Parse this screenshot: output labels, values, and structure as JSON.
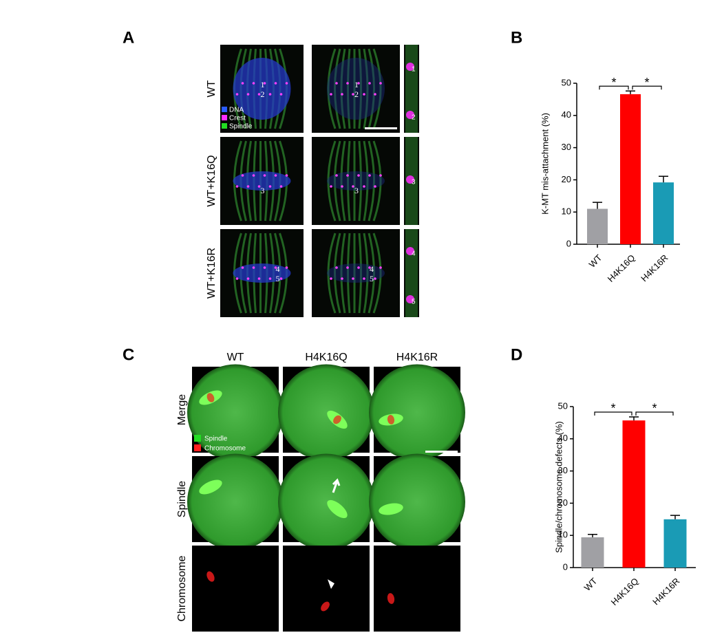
{
  "panels": {
    "A": {
      "letter": "A",
      "rows": [
        {
          "label": "WT",
          "markers": [
            "1",
            "2"
          ]
        },
        {
          "label": "WT+K16Q",
          "markers": [
            "3"
          ]
        },
        {
          "label": "WT+K16R",
          "markers": [
            "4",
            "5"
          ]
        }
      ],
      "legend": [
        {
          "name": "DNA",
          "color": "#2a5cff"
        },
        {
          "name": "Crest",
          "color": "#ff2cff"
        },
        {
          "name": "Spindle",
          "color": "#22dd22"
        }
      ]
    },
    "C": {
      "letter": "C",
      "columns": [
        "WT",
        "H4K16Q",
        "H4K16R"
      ],
      "rows": [
        "Merge",
        "Spindle",
        "Chromosome"
      ],
      "legend": [
        {
          "name": "Spindle",
          "color": "#22dd22"
        },
        {
          "name": "Chromosome",
          "color": "#ff2020"
        }
      ]
    }
  },
  "chart_data": [
    {
      "type": "bar",
      "panel": "B",
      "y_label": "K-MT mis-attachment (%)",
      "categories": [
        "WT",
        "H4K16Q",
        "H4K16R"
      ],
      "values": [
        11,
        46.6,
        19.2
      ],
      "errors": [
        2,
        1,
        1.9
      ],
      "colors": [
        "#a0a0a4",
        "#ff0000",
        "#1a9bb5"
      ],
      "ylim": [
        0,
        50
      ],
      "yticks": [
        0,
        10,
        20,
        30,
        40,
        50
      ],
      "significance": [
        "*",
        "*"
      ]
    },
    {
      "type": "bar",
      "panel": "D",
      "y_label": "Spindle/chromosome defects (%)",
      "categories": [
        "WT",
        "H4K16Q",
        "H4K16R"
      ],
      "values": [
        9.4,
        45.7,
        15
      ],
      "errors": [
        0.9,
        1.1,
        1.2
      ],
      "colors": [
        "#a0a0a4",
        "#ff0000",
        "#1a9bb5"
      ],
      "ylim": [
        0,
        50
      ],
      "yticks": [
        0,
        10,
        20,
        30,
        40,
        50
      ],
      "significance": [
        "*",
        "*"
      ]
    }
  ]
}
